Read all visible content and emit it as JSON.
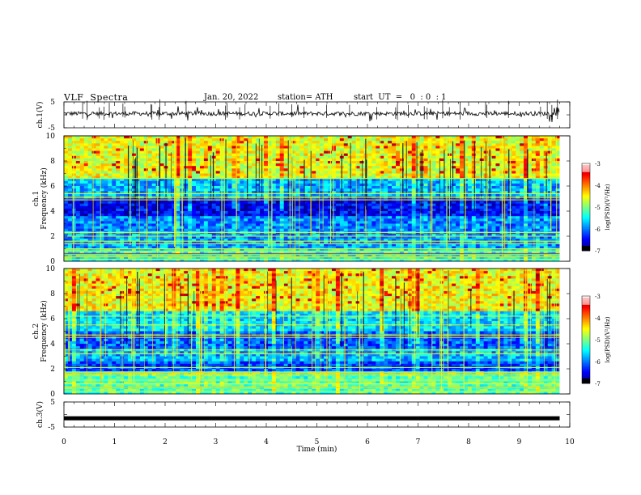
{
  "header": {
    "title": "VLF  Spectra",
    "date": "Jan. 20, 2022",
    "station": "station= ATH",
    "start": "start  UT  =   0  : 0  : 1"
  },
  "chart_data": [
    {
      "type": "line",
      "panel": "ch1-waveform",
      "ylabel": "ch.1(V)",
      "yticks": [
        "5",
        "-5"
      ],
      "ylim": [
        -5,
        5
      ],
      "xlim": [
        0,
        10
      ],
      "series": [
        {
          "values_desc": "noisy waveform around ~0.5 V with frequent spikes",
          "baseline": 0.5
        }
      ]
    },
    {
      "type": "heatmap",
      "panel": "ch1-spectrogram",
      "ylabel": "ch.1\nFrequency  (kHz)",
      "yticks": [
        "0",
        "2",
        "4",
        "6",
        "8",
        "10"
      ],
      "ylim": [
        0,
        10
      ],
      "xlim": [
        0,
        9.8
      ],
      "colorbar": {
        "label": "log(PSD)(V²/Hz)",
        "ticks": [
          "-3",
          "-4",
          "-5",
          "-6",
          "-7"
        ],
        "range": [
          -7,
          -3
        ]
      }
    },
    {
      "type": "heatmap",
      "panel": "ch2-spectrogram",
      "ylabel": "ch.2\nFrequency  (kHz)",
      "yticks": [
        "0",
        "2",
        "4",
        "6",
        "8",
        "10"
      ],
      "ylim": [
        0,
        10
      ],
      "xlim": [
        0,
        9.8
      ],
      "colorbar": {
        "label": "log(PSD)(V²/Hz)",
        "ticks": [
          "-3",
          "-4",
          "-5",
          "-6",
          "-7"
        ],
        "range": [
          -7,
          -3
        ]
      }
    },
    {
      "type": "line",
      "panel": "ch3-waveform",
      "ylabel": "ch.3(V)",
      "yticks": [
        "5",
        "-5"
      ],
      "ylim": [
        -5,
        5
      ],
      "xlim": [
        0,
        10
      ],
      "series": [
        {
          "values_desc": "flat thick line",
          "baseline": -1.5
        }
      ]
    }
  ],
  "xaxis": {
    "label": "Time  (min)",
    "ticks": [
      "0",
      "1",
      "2",
      "3",
      "4",
      "5",
      "6",
      "7",
      "8",
      "9",
      "10"
    ]
  }
}
